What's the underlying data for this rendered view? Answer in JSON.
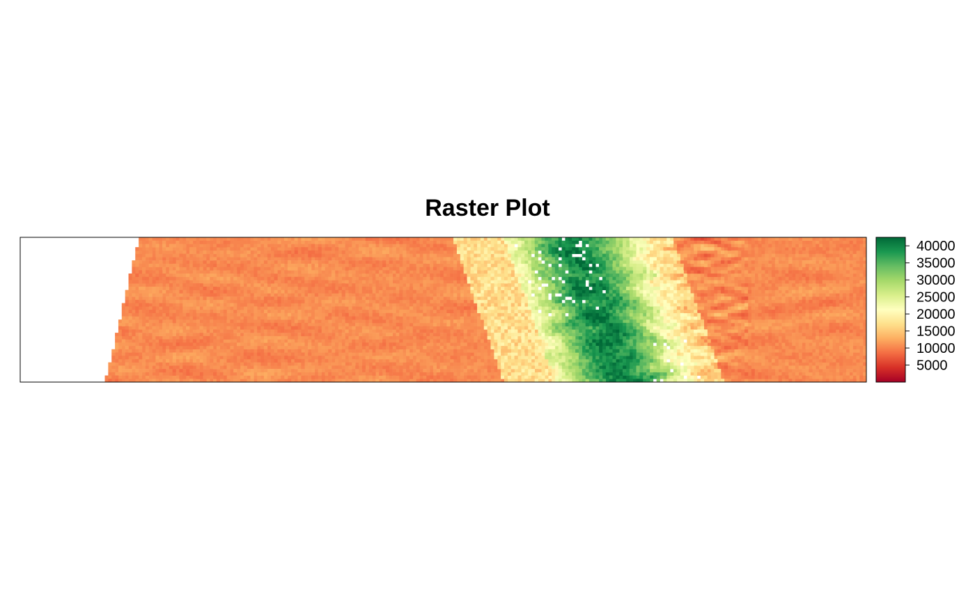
{
  "chart_data": {
    "type": "heatmap",
    "title": "Raster Plot",
    "xlabel": "",
    "ylabel": "",
    "axes_shown": false,
    "legend": {
      "placement": "right",
      "range": [
        0,
        42500
      ],
      "ticks": [
        5000,
        10000,
        15000,
        20000,
        25000,
        30000,
        35000,
        40000
      ],
      "tick_labels": [
        "5000",
        "10000",
        "15000",
        "20000",
        "25000",
        "30000",
        "35000",
        "40000"
      ],
      "palette": "RdYlGn"
    },
    "colors": [
      "#a50026",
      "#d73027",
      "#f46d43",
      "#fdae61",
      "#fee08b",
      "#ffffbf",
      "#d9ef8b",
      "#a6d96a",
      "#66bd63",
      "#1a9850",
      "#006837"
    ],
    "na_color": "#ffffff"
  }
}
